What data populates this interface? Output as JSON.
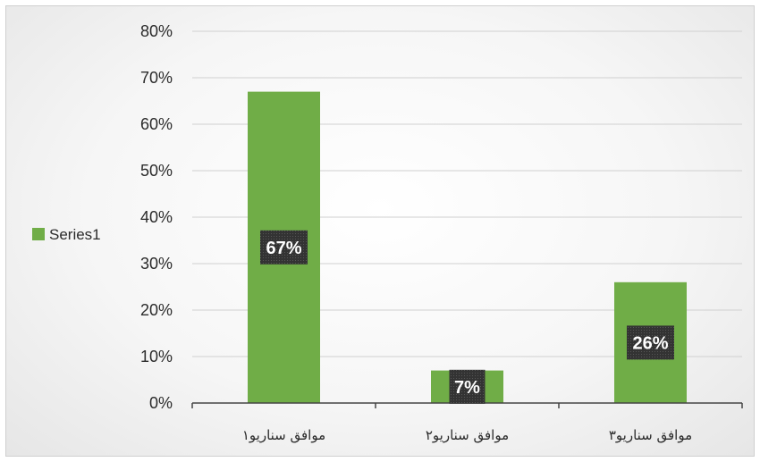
{
  "chart_data": {
    "type": "bar",
    "categories": [
      "موافق سناریو۱",
      "موافق سناریو۲",
      "موافق سناریو۳"
    ],
    "series": [
      {
        "name": "Series1",
        "values": [
          0.67,
          0.07,
          0.26
        ],
        "color": "#70ad47"
      }
    ],
    "data_labels": [
      "67%",
      "7%",
      "26%"
    ],
    "ylim": [
      0,
      0.8
    ],
    "y_ticks": [
      0,
      0.1,
      0.2,
      0.3,
      0.4,
      0.5,
      0.6,
      0.7,
      0.8
    ],
    "y_tick_labels": [
      "0%",
      "10%",
      "20%",
      "30%",
      "40%",
      "50%",
      "60%",
      "70%",
      "80%"
    ],
    "grid": true,
    "legend": {
      "position": "left",
      "entries": [
        "Series1"
      ]
    },
    "colors": {
      "bar": "#70ad47",
      "label_box": "#3a3a3a",
      "grid": "#d0d0d0",
      "axis": "#444444"
    }
  }
}
